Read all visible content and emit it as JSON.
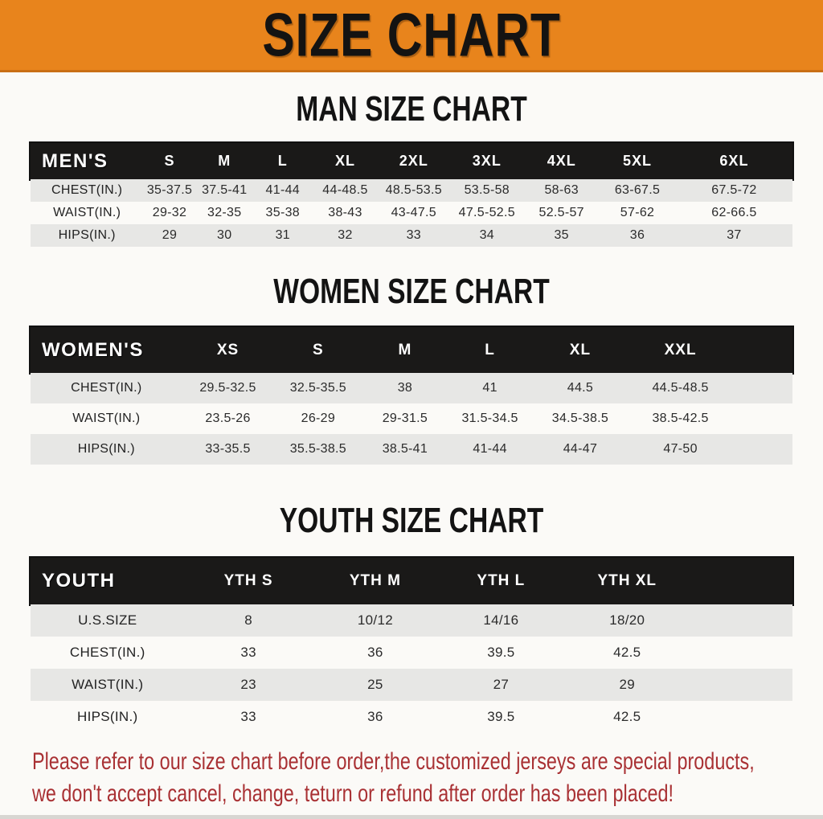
{
  "banner": {
    "title": "SIZE CHART"
  },
  "men": {
    "heading": "MAN SIZE CHART",
    "table": {
      "header": [
        "MEN'S",
        "S",
        "M",
        "L",
        "XL",
        "2XL",
        "3XL",
        "4XL",
        "5XL",
        "6XL"
      ],
      "rows": [
        [
          "CHEST(IN.)",
          "35-37.5",
          "37.5-41",
          "41-44",
          "44-48.5",
          "48.5-53.5",
          "53.5-58",
          "58-63",
          "63-67.5",
          "67.5-72"
        ],
        [
          "WAIST(IN.)",
          "29-32",
          "32-35",
          "35-38",
          "38-43",
          "43-47.5",
          "47.5-52.5",
          "52.5-57",
          "57-62",
          "62-66.5"
        ],
        [
          "HIPS(IN.)",
          "29",
          "30",
          "31",
          "32",
          "33",
          "34",
          "35",
          "36",
          "37"
        ]
      ]
    }
  },
  "women": {
    "heading": "WOMEN SIZE CHART",
    "table": {
      "header": [
        "WOMEN'S",
        "XS",
        "S",
        "M",
        "L",
        "XL",
        "XXL"
      ],
      "rows": [
        [
          "CHEST(IN.)",
          "29.5-32.5",
          "32.5-35.5",
          "38",
          "41",
          "44.5",
          "44.5-48.5"
        ],
        [
          "WAIST(IN.)",
          "23.5-26",
          "26-29",
          "29-31.5",
          "31.5-34.5",
          "34.5-38.5",
          "38.5-42.5"
        ],
        [
          "HIPS(IN.)",
          "33-35.5",
          "35.5-38.5",
          "38.5-41",
          "41-44",
          "44-47",
          "47-50"
        ]
      ]
    }
  },
  "youth": {
    "heading": "YOUTH SIZE CHART",
    "table": {
      "header": [
        "YOUTH",
        "YTH S",
        "YTH M",
        "YTH L",
        "YTH XL"
      ],
      "rows": [
        [
          "U.S.SIZE",
          "8",
          "10/12",
          "14/16",
          "18/20"
        ],
        [
          "CHEST(IN.)",
          "33",
          "36",
          "39.5",
          "42.5"
        ],
        [
          "WAIST(IN.)",
          "23",
          "25",
          "27",
          "29"
        ],
        [
          "HIPS(IN.)",
          "33",
          "36",
          "39.5",
          "42.5"
        ]
      ]
    }
  },
  "disclaimer": {
    "line1": "Please refer to our size chart before order,the customized jerseys are special products,",
    "line2": "we don't accept cancel, change, teturn or refund after order has been placed!"
  },
  "colors": {
    "banner_bg": "#E8841C",
    "header_bar_bg": "#1A1918",
    "row_stripe": "#E7E7E5",
    "disclaimer_color": "#A93134",
    "page_bg": "#FBFAF7",
    "bottom_strip": "#D8D6D2"
  }
}
